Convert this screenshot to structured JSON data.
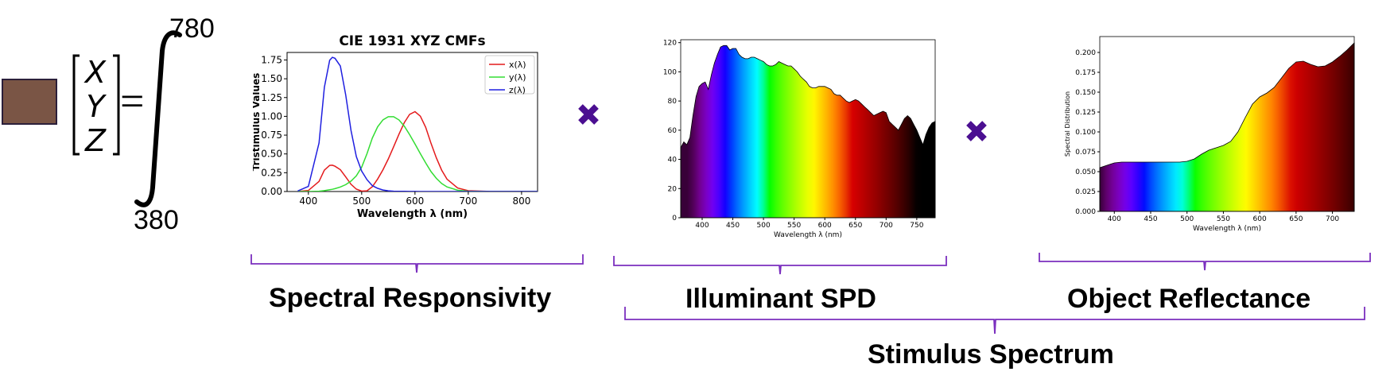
{
  "equation": {
    "color_swatch": "#7a5545",
    "swatch_border": "#2b1f3a",
    "vector": [
      "X",
      "Y",
      "Z"
    ],
    "equals": "=",
    "upper_limit": "780",
    "lower_limit": "380",
    "multiply_color": "#4b0f91",
    "bracket_color": "#7b2fbf"
  },
  "labels": {
    "spectral_responsivity": "Spectral Responsivity",
    "illuminant_spd": "Illuminant SPD",
    "object_reflectance": "Object Reflectance",
    "stimulus_spectrum": "Stimulus Spectrum"
  },
  "chart_data": [
    {
      "type": "line",
      "title": "CIE 1931 XYZ CMFs",
      "xlabel": "Wavelength λ (nm)",
      "ylabel": "Tristimulus Values",
      "xlim": [
        360,
        830
      ],
      "ylim": [
        0,
        1.85
      ],
      "xticks": [
        "400",
        "500",
        "600",
        "700",
        "800"
      ],
      "yticks": [
        "0.00",
        "0.25",
        "0.50",
        "0.75",
        "1.00",
        "1.25",
        "1.50",
        "1.75"
      ],
      "legend": "top-right",
      "x": [
        380,
        400,
        420,
        430,
        440,
        445,
        450,
        460,
        470,
        480,
        490,
        500,
        510,
        520,
        530,
        540,
        550,
        560,
        570,
        580,
        590,
        600,
        610,
        620,
        630,
        640,
        650,
        660,
        680,
        700,
        740,
        780,
        830
      ],
      "series": [
        {
          "name": "x(λ)",
          "color": "#e41a1c",
          "values": [
            0.001,
            0.014,
            0.134,
            0.284,
            0.348,
            0.35,
            0.336,
            0.291,
            0.195,
            0.096,
            0.032,
            0.005,
            0.009,
            0.063,
            0.166,
            0.29,
            0.433,
            0.595,
            0.762,
            0.916,
            1.026,
            1.062,
            1.002,
            0.854,
            0.642,
            0.448,
            0.284,
            0.165,
            0.047,
            0.011,
            0.001,
            0.0,
            0.0
          ]
        },
        {
          "name": "y(λ)",
          "color": "#33dd33",
          "values": [
            0.0,
            0.0,
            0.004,
            0.012,
            0.023,
            0.03,
            0.038,
            0.06,
            0.091,
            0.139,
            0.208,
            0.323,
            0.503,
            0.71,
            0.862,
            0.954,
            0.995,
            0.995,
            0.952,
            0.87,
            0.757,
            0.631,
            0.503,
            0.381,
            0.265,
            0.175,
            0.107,
            0.061,
            0.017,
            0.004,
            0.0,
            0.0,
            0.0
          ]
        },
        {
          "name": "z(λ)",
          "color": "#1f1fe0",
          "values": [
            0.007,
            0.068,
            0.646,
            1.386,
            1.747,
            1.785,
            1.772,
            1.669,
            1.288,
            0.813,
            0.465,
            0.272,
            0.158,
            0.078,
            0.042,
            0.02,
            0.009,
            0.004,
            0.002,
            0.002,
            0.001,
            0.001,
            0.0,
            0.0,
            0.0,
            0.0,
            0.0,
            0.0,
            0.0,
            0.0,
            0.0,
            0.0,
            0.0
          ]
        }
      ]
    },
    {
      "type": "area",
      "title": "",
      "xlabel": "Wavelength λ (nm)",
      "ylabel": "",
      "xlim": [
        365,
        780
      ],
      "ylim": [
        0,
        122
      ],
      "xticks": [
        "400",
        "450",
        "500",
        "550",
        "600",
        "650",
        "700",
        "750"
      ],
      "yticks": [
        "0",
        "20",
        "40",
        "60",
        "80",
        "100",
        "120"
      ],
      "x": [
        365,
        370,
        375,
        380,
        385,
        390,
        395,
        400,
        405,
        410,
        415,
        420,
        425,
        430,
        435,
        440,
        445,
        450,
        455,
        460,
        465,
        470,
        475,
        480,
        485,
        490,
        495,
        500,
        505,
        510,
        515,
        520,
        525,
        530,
        535,
        540,
        545,
        550,
        555,
        560,
        565,
        570,
        575,
        580,
        585,
        590,
        595,
        600,
        605,
        610,
        615,
        620,
        625,
        630,
        635,
        640,
        645,
        650,
        655,
        660,
        665,
        670,
        675,
        680,
        685,
        690,
        695,
        700,
        705,
        710,
        715,
        720,
        725,
        730,
        735,
        740,
        745,
        750,
        755,
        760,
        765,
        770,
        775,
        780
      ],
      "values": [
        48,
        52,
        50,
        55,
        70,
        83,
        90,
        92,
        93,
        88,
        98,
        106,
        112,
        117,
        118,
        118,
        115,
        116,
        116,
        112,
        110,
        109,
        109,
        110,
        110,
        109,
        108,
        107,
        105,
        104,
        104,
        105,
        107,
        106,
        105,
        104,
        104,
        102,
        100,
        97,
        95,
        93,
        90,
        89,
        89,
        90,
        90,
        90,
        89,
        88,
        85,
        84,
        84,
        82,
        80,
        79,
        80,
        81,
        80,
        78,
        76,
        74,
        72,
        70,
        71,
        72,
        73,
        72,
        66,
        64,
        62,
        60,
        64,
        68,
        70,
        68,
        64,
        60,
        55,
        50,
        57,
        62,
        65,
        66
      ]
    },
    {
      "type": "area",
      "title": "",
      "xlabel": "Wavelength λ (nm)",
      "ylabel": "Spectral Distribution",
      "xlim": [
        380,
        730
      ],
      "ylim": [
        0,
        0.22
      ],
      "xticks": [
        "400",
        "450",
        "500",
        "550",
        "600",
        "650",
        "700"
      ],
      "yticks": [
        "0.000",
        "0.025",
        "0.050",
        "0.075",
        "0.100",
        "0.125",
        "0.150",
        "0.175",
        "0.200"
      ],
      "x": [
        380,
        390,
        400,
        410,
        420,
        430,
        440,
        450,
        460,
        470,
        480,
        490,
        500,
        510,
        520,
        530,
        540,
        550,
        560,
        570,
        580,
        590,
        600,
        610,
        620,
        630,
        640,
        650,
        660,
        670,
        680,
        690,
        700,
        710,
        720,
        730
      ],
      "values": [
        0.055,
        0.058,
        0.061,
        0.062,
        0.062,
        0.062,
        0.062,
        0.062,
        0.062,
        0.062,
        0.062,
        0.062,
        0.063,
        0.066,
        0.072,
        0.077,
        0.08,
        0.083,
        0.088,
        0.1,
        0.118,
        0.135,
        0.144,
        0.149,
        0.156,
        0.168,
        0.18,
        0.188,
        0.189,
        0.185,
        0.182,
        0.183,
        0.188,
        0.195,
        0.203,
        0.212
      ]
    }
  ]
}
